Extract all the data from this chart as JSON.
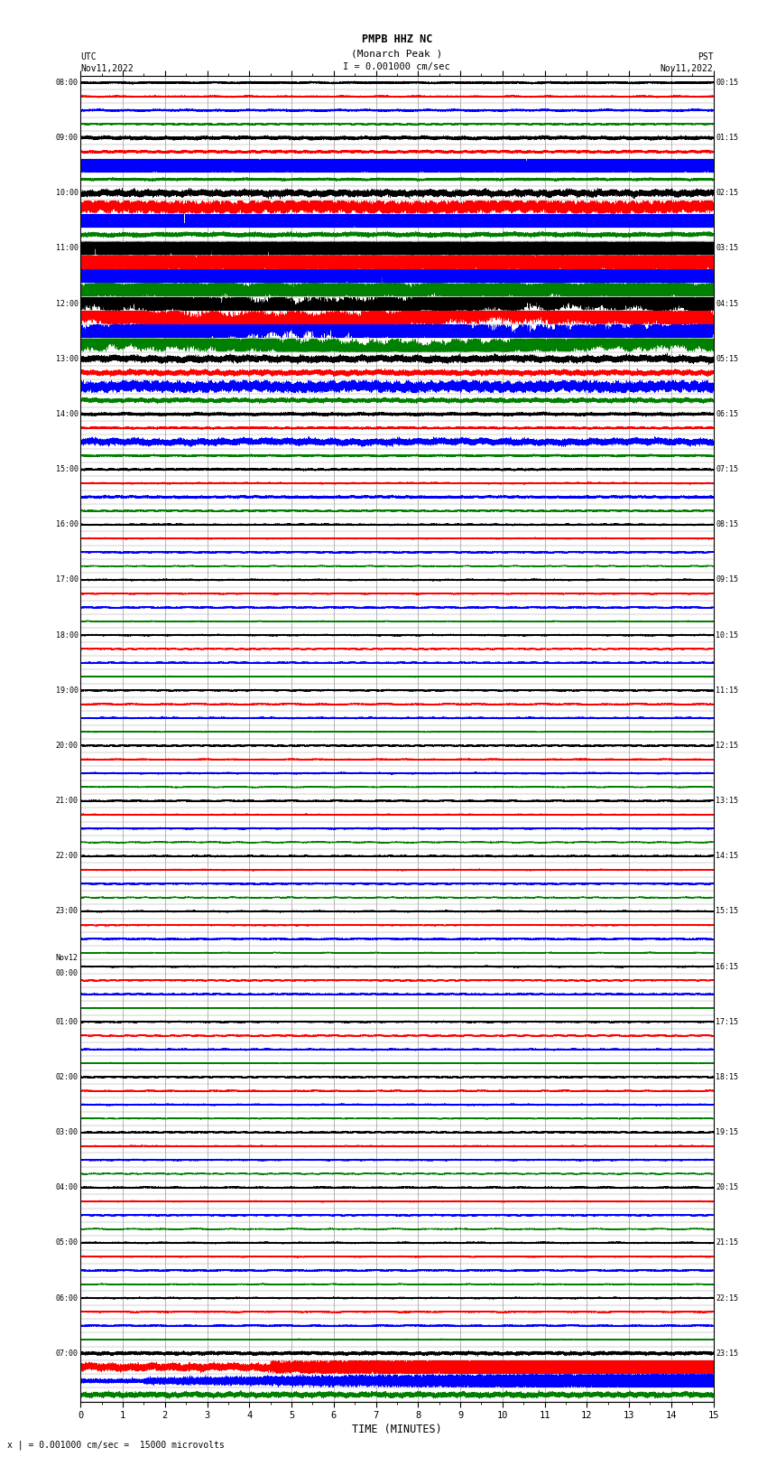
{
  "title_line1": "PMPB HHZ NC",
  "title_line2": "(Monarch Peak )",
  "scale_label": "I = 0.001000 cm/sec",
  "bottom_label": "x | = 0.001000 cm/sec =  15000 microvolts",
  "utc_label": "UTC\nNov11,2022",
  "pst_label": "PST\nNov11,2022",
  "xlabel": "TIME (MINUTES)",
  "background_color": "#ffffff",
  "plot_bg_color": "#ffffff",
  "grid_color": "#999999",
  "trace_colors": [
    "#000000",
    "#ff0000",
    "#0000ff",
    "#008000"
  ],
  "left_times_utc": [
    "08:00",
    "",
    "",
    "",
    "09:00",
    "",
    "",
    "",
    "10:00",
    "",
    "",
    "",
    "11:00",
    "",
    "",
    "",
    "12:00",
    "",
    "",
    "",
    "13:00",
    "",
    "",
    "",
    "14:00",
    "",
    "",
    "",
    "15:00",
    "",
    "",
    "",
    "16:00",
    "",
    "",
    "",
    "17:00",
    "",
    "",
    "",
    "18:00",
    "",
    "",
    "",
    "19:00",
    "",
    "",
    "",
    "20:00",
    "",
    "",
    "",
    "21:00",
    "",
    "",
    "",
    "22:00",
    "",
    "",
    "",
    "23:00",
    "",
    "",
    "",
    "Nov12\n00:00",
    "",
    "",
    "",
    "01:00",
    "",
    "",
    "",
    "02:00",
    "",
    "",
    "",
    "03:00",
    "",
    "",
    "",
    "04:00",
    "",
    "",
    "",
    "05:00",
    "",
    "",
    "",
    "06:00",
    "",
    "",
    "",
    "07:00",
    "",
    "",
    ""
  ],
  "right_times_pst": [
    "00:15",
    "",
    "",
    "",
    "01:15",
    "",
    "",
    "",
    "02:15",
    "",
    "",
    "",
    "03:15",
    "",
    "",
    "",
    "04:15",
    "",
    "",
    "",
    "05:15",
    "",
    "",
    "",
    "06:15",
    "",
    "",
    "",
    "07:15",
    "",
    "",
    "",
    "08:15",
    "",
    "",
    "",
    "09:15",
    "",
    "",
    "",
    "10:15",
    "",
    "",
    "",
    "11:15",
    "",
    "",
    "",
    "12:15",
    "",
    "",
    "",
    "13:15",
    "",
    "",
    "",
    "14:15",
    "",
    "",
    "",
    "15:15",
    "",
    "",
    "",
    "16:15",
    "",
    "",
    "",
    "17:15",
    "",
    "",
    "",
    "18:15",
    "",
    "",
    "",
    "19:15",
    "",
    "",
    "",
    "20:15",
    "",
    "",
    "",
    "21:15",
    "",
    "",
    "",
    "22:15",
    "",
    "",
    "",
    "23:15",
    "",
    "",
    ""
  ],
  "n_rows": 96,
  "minutes": 15,
  "sample_rate": 50,
  "figwidth": 8.5,
  "figheight": 16.13,
  "dpi": 100,
  "n_hour_groups": 24,
  "rows_per_hour": 4
}
